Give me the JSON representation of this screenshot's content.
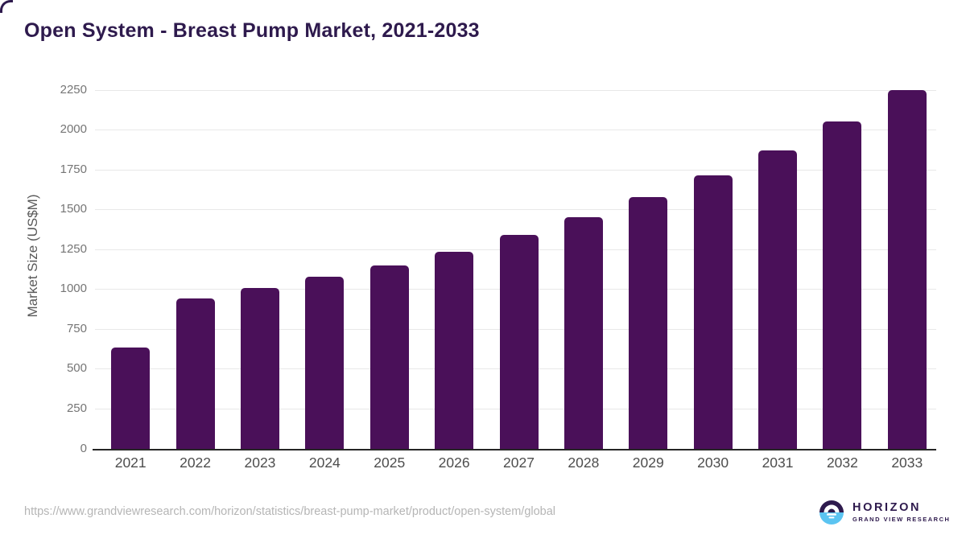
{
  "page": {
    "source_url": "https://www.grandviewresearch.com/horizon/statistics/breast-pump-market/product/open-system/global"
  },
  "logo": {
    "name": "HORIZON",
    "subtitle": "GRAND VIEW RESEARCH"
  },
  "colors": {
    "bar": "#4a1059",
    "brand_purple": "#2e1a4d",
    "brand_blue": "#5bc4f1",
    "gridline": "#e8e8e8",
    "axis_line": "#262626",
    "y_tick_label": "#757575",
    "x_tick_label": "#4d4d4d",
    "y_axis_title": "#595959",
    "url_text": "#b5b5b5"
  },
  "chart_data": {
    "type": "bar",
    "title": "Open System - Breast Pump Market, 2021-2033",
    "categories": [
      "2021",
      "2022",
      "2023",
      "2024",
      "2025",
      "2026",
      "2027",
      "2028",
      "2029",
      "2030",
      "2031",
      "2032",
      "2033"
    ],
    "values": [
      635,
      940,
      1005,
      1075,
      1150,
      1235,
      1340,
      1450,
      1575,
      1715,
      1870,
      2050,
      2250
    ],
    "xlabel": "",
    "ylabel": "Market Size (US$M)",
    "ylim": [
      0,
      2250
    ],
    "yticks": [
      0,
      250,
      500,
      750,
      1000,
      1250,
      1500,
      1750,
      2000,
      2250
    ],
    "grid": true,
    "legend": null,
    "bar_color": "#4a1059"
  }
}
